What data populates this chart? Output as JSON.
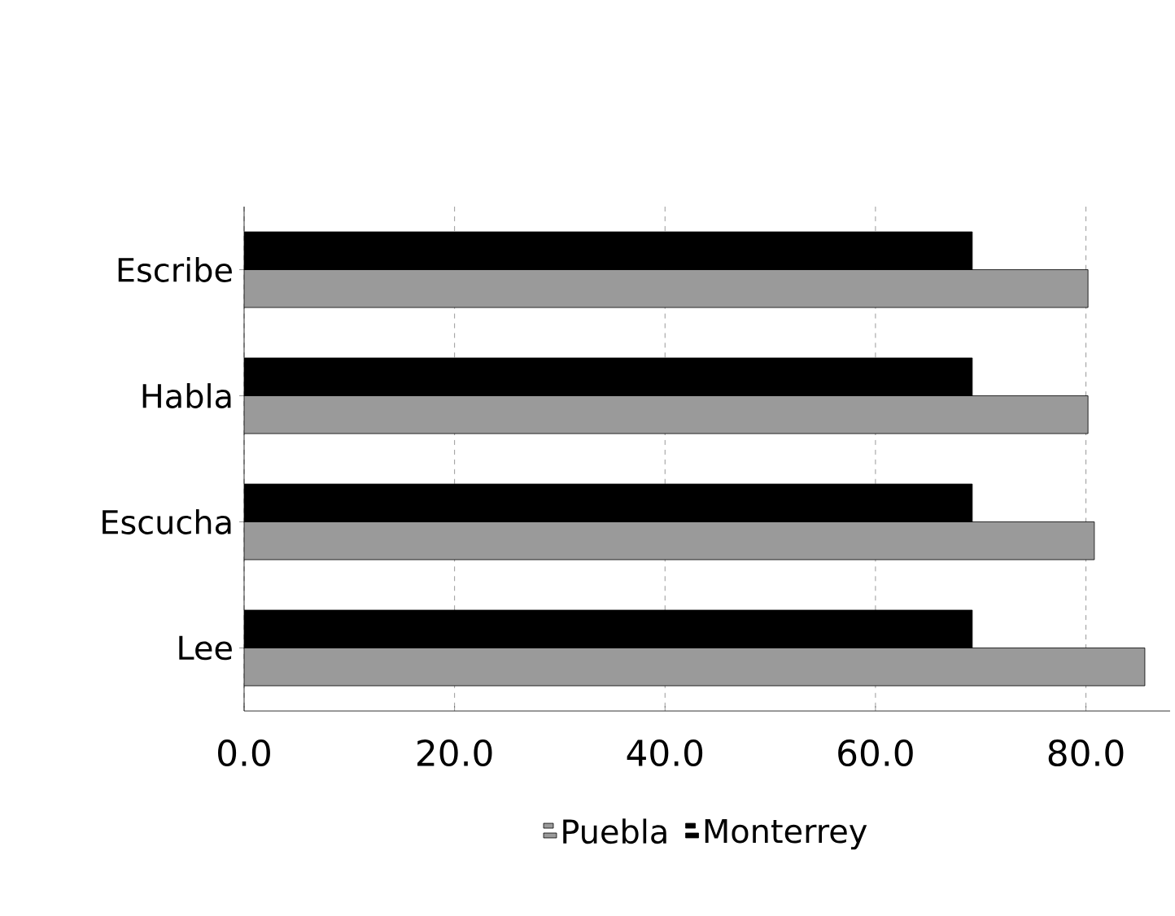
{
  "chart_data": {
    "type": "bar",
    "orientation": "horizontal",
    "categories": [
      "Escribe",
      "Habla",
      "Escucha",
      "Lee"
    ],
    "series": [
      {
        "name": "Puebla",
        "color": "#9a9a9a",
        "values": [
          80.2,
          80.2,
          80.8,
          85.6
        ]
      },
      {
        "name": "Monterrey",
        "color": "#000000",
        "values": [
          69.2,
          69.2,
          69.2,
          69.2
        ]
      }
    ],
    "xlim": [
      0,
      88
    ],
    "xticks": [
      {
        "value": 0,
        "label": "0.0"
      },
      {
        "value": 20,
        "label": "20.0"
      },
      {
        "value": 40,
        "label": "40.0"
      },
      {
        "value": 60,
        "label": "60.0"
      },
      {
        "value": 80,
        "label": "80.0"
      }
    ],
    "grid": "x",
    "legend": "bottom"
  }
}
